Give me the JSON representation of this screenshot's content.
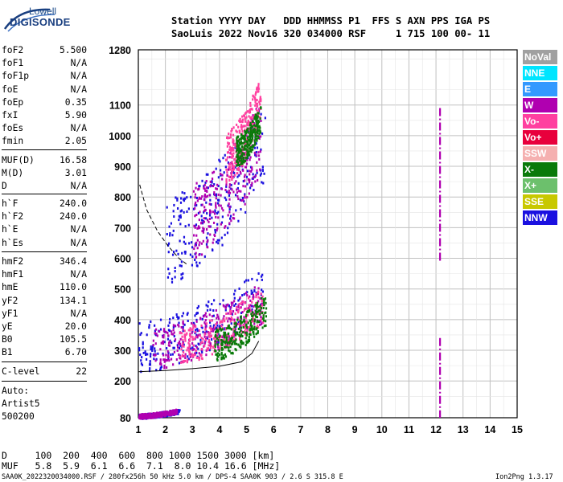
{
  "logo": {
    "top": "Lowell",
    "main": "DIGISONDE"
  },
  "header": {
    "line1": "Station YYYY DAY   DDD HHMMSS P1  FFS S AXN PPS IGA PS",
    "line2": "SaoLuis 2022 Nov16 320 034000 RSF     1 715 100 00- 11"
  },
  "params": {
    "group1": [
      {
        "k": "foF2",
        "v": "5.500"
      },
      {
        "k": "foF1",
        "v": "N/A"
      },
      {
        "k": "foF1p",
        "v": "N/A"
      },
      {
        "k": "foE",
        "v": "N/A"
      },
      {
        "k": "foEp",
        "v": "0.35"
      },
      {
        "k": "fxI",
        "v": "5.90"
      },
      {
        "k": "foEs",
        "v": "N/A"
      },
      {
        "k": "fmin",
        "v": "2.05"
      }
    ],
    "group2": [
      {
        "k": "MUF(D)",
        "v": "16.58"
      },
      {
        "k": "M(D)",
        "v": "3.01"
      },
      {
        "k": "D",
        "v": "N/A"
      }
    ],
    "group3": [
      {
        "k": "h`F",
        "v": "240.0"
      },
      {
        "k": "h`F2",
        "v": "240.0"
      },
      {
        "k": "h`E",
        "v": "N/A"
      },
      {
        "k": "h`Es",
        "v": "N/A"
      }
    ],
    "group4": [
      {
        "k": "hmF2",
        "v": "346.4"
      },
      {
        "k": "hmF1",
        "v": "N/A"
      },
      {
        "k": "hmE",
        "v": "110.0"
      },
      {
        "k": "yF2",
        "v": "134.1"
      },
      {
        "k": "yF1",
        "v": "N/A"
      },
      {
        "k": "yE",
        "v": "20.0"
      },
      {
        "k": "B0",
        "v": "105.5"
      },
      {
        "k": "B1",
        "v": "6.70"
      }
    ],
    "clevel": {
      "k": "C-level",
      "v": "22"
    },
    "auto": [
      "Auto:",
      "Artist5",
      "500200"
    ]
  },
  "legend": [
    {
      "label": "NoVal",
      "color": "#a0a0a0"
    },
    {
      "label": "NNE",
      "color": "#00e5ff"
    },
    {
      "label": "E",
      "color": "#3399ff"
    },
    {
      "label": "W",
      "color": "#b000b0"
    },
    {
      "label": "Vo-",
      "color": "#ff40a0"
    },
    {
      "label": "Vo+",
      "color": "#e8003c"
    },
    {
      "label": "SSW",
      "color": "#f5b0b0"
    },
    {
      "label": "X-",
      "color": "#0a7a0a"
    },
    {
      "label": "X+",
      "color": "#6cc06c"
    },
    {
      "label": "SSE",
      "color": "#c8c800"
    },
    {
      "label": "NNW",
      "color": "#1a10e0"
    }
  ],
  "bottom": {
    "d_line": "D     100  200  400  600  800 1000 1500 3000 [km]",
    "muf_line": "MUF   5.8  5.9  6.1  6.6  7.1  8.0 10.4 16.6 [MHz]",
    "footer": "SAA0K_2022320034000.RSF / 280fx256h 50 kHz 5.0 km / DPS-4 SAA0K 903 / 2.6 S 315.8 E",
    "footer_right": "Ion2Png 1.3.17"
  },
  "chart_data": {
    "type": "scatter",
    "title": "",
    "xlabel": "",
    "ylabel": "",
    "xlim": [
      1,
      15
    ],
    "ylim": [
      80,
      1280
    ],
    "x_ticks": [
      1,
      2,
      3,
      4,
      5,
      6,
      7,
      8,
      9,
      10,
      11,
      12,
      13,
      14,
      15
    ],
    "y_ticks": [
      80,
      200,
      300,
      400,
      500,
      600,
      700,
      800,
      900,
      1000,
      1100,
      1280
    ],
    "grid": true,
    "trace_line": [
      {
        "x": 1.0,
        "y": 230
      },
      {
        "x": 2.0,
        "y": 234
      },
      {
        "x": 3.0,
        "y": 240
      },
      {
        "x": 4.0,
        "y": 248
      },
      {
        "x": 4.8,
        "y": 262
      },
      {
        "x": 5.2,
        "y": 290
      },
      {
        "x": 5.45,
        "y": 330
      }
    ],
    "dashed_line": [
      {
        "x": 1.05,
        "y": 840
      },
      {
        "x": 1.3,
        "y": 760
      },
      {
        "x": 1.7,
        "y": 690
      },
      {
        "x": 2.1,
        "y": 640
      },
      {
        "x": 2.5,
        "y": 600
      },
      {
        "x": 2.8,
        "y": 580
      }
    ],
    "interference_line": {
      "x": 12.15,
      "y_segments": [
        [
          590,
          1090
        ],
        [
          80,
          340
        ]
      ],
      "color": "W"
    },
    "clusters": [
      {
        "color": "NNW",
        "x": [
          1.0,
          5.7
        ],
        "y": [
          230,
          560
        ]
      },
      {
        "color": "W",
        "x": [
          1.5,
          5.6
        ],
        "y": [
          240,
          520
        ]
      },
      {
        "color": "Vo-",
        "x": [
          2.5,
          5.6
        ],
        "y": [
          260,
          500
        ]
      },
      {
        "color": "X-",
        "x": [
          3.8,
          5.7
        ],
        "y": [
          270,
          480
        ]
      },
      {
        "color": "NNW",
        "x": [
          2.0,
          5.7
        ],
        "y": [
          520,
          1100
        ]
      },
      {
        "color": "W",
        "x": [
          3.0,
          5.5
        ],
        "y": [
          600,
          1100
        ]
      },
      {
        "color": "Vo-",
        "x": [
          4.2,
          5.5
        ],
        "y": [
          850,
          1180
        ]
      },
      {
        "color": "X-",
        "x": [
          4.6,
          5.5
        ],
        "y": [
          900,
          1100
        ]
      },
      {
        "color": "NNW",
        "x": [
          1.0,
          2.5
        ],
        "y": [
          80,
          110
        ]
      },
      {
        "color": "W",
        "x": [
          1.0,
          2.4
        ],
        "y": [
          80,
          110
        ]
      }
    ]
  }
}
